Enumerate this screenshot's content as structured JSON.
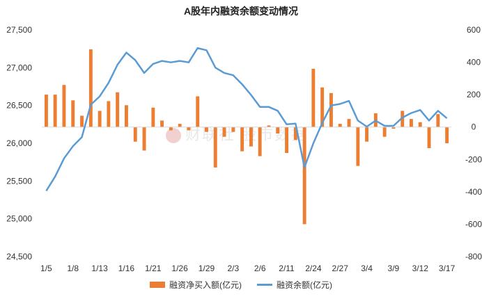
{
  "chart_data": {
    "type": "bar+line",
    "title": "A股年内融资余额变动情况",
    "left_axis": {
      "min": 24500,
      "max": 27500,
      "ticks": [
        "24,500",
        "25,000",
        "25,500",
        "26,000",
        "26,500",
        "27,000",
        "27,500"
      ]
    },
    "right_axis": {
      "min": -800,
      "max": 600,
      "ticks": [
        "-800",
        "-600",
        "-400",
        "-200",
        "0",
        "200",
        "400",
        "600"
      ]
    },
    "x_tick_labels": [
      "1/5",
      "1/8",
      "1/13",
      "1/16",
      "1/21",
      "1/26",
      "1/29",
      "2/3",
      "2/6",
      "2/11",
      "2/24",
      "2/27",
      "3/4",
      "3/9",
      "3/12",
      "3/17"
    ],
    "x_tick_index": [
      0,
      3,
      6,
      9,
      12,
      15,
      18,
      21,
      24,
      27,
      30,
      33,
      36,
      39,
      42,
      45
    ],
    "grid": false,
    "legend_position": "bottom",
    "series": [
      {
        "name": "融资净买入额(亿元)",
        "type": "bar",
        "axis": "right",
        "color": "#ed7d31",
        "values": [
          200,
          200,
          260,
          165,
          70,
          480,
          100,
          160,
          215,
          135,
          -90,
          -145,
          120,
          40,
          -20,
          20,
          -20,
          190,
          -30,
          -250,
          -60,
          -30,
          -150,
          -120,
          -180,
          10,
          -40,
          -160,
          -80,
          -600,
          360,
          245,
          210,
          20,
          50,
          -240,
          -90,
          85,
          -60,
          -10,
          100,
          50,
          30,
          -130,
          80,
          -100
        ]
      },
      {
        "name": "融资余额(亿元)",
        "type": "line",
        "axis": "left",
        "color": "#5b9bd5",
        "values": [
          25370,
          25560,
          25800,
          25960,
          26080,
          26510,
          26620,
          26800,
          27040,
          27200,
          27100,
          26930,
          27050,
          27090,
          27070,
          27090,
          27070,
          27260,
          27230,
          27000,
          26930,
          26900,
          26780,
          26640,
          26480,
          26480,
          26430,
          26250,
          26260,
          25680,
          26000,
          26270,
          26500,
          26520,
          26560,
          26300,
          26220,
          26300,
          26230,
          26230,
          26340,
          26400,
          26440,
          26300,
          26430,
          26330
        ]
      }
    ]
  },
  "legend": {
    "bar_label": "融资净买入额(亿元)",
    "line_label": "融资余额(亿元)"
  },
  "watermark": {
    "text": "财联社 股市数据"
  }
}
